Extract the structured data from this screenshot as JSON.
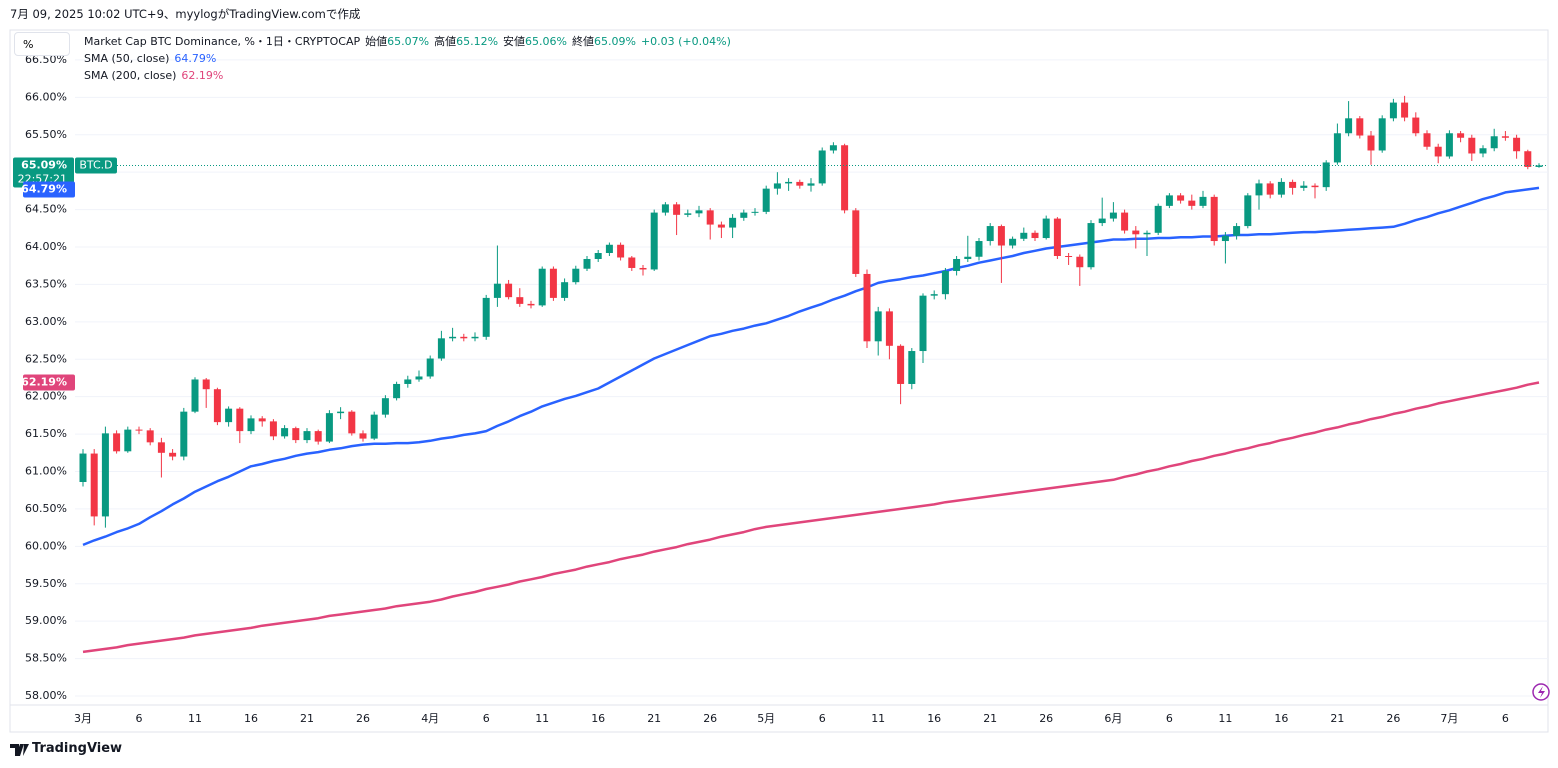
{
  "header": {
    "created": "7月 09, 2025 10:02 UTC+9、myylogがTradingView.comで作成",
    "scale_button": "%",
    "logo": "TradingView"
  },
  "chart_data": {
    "type": "candlestick",
    "title": "Market Cap BTC Dominance, %・1日・CRYPTOCAP",
    "ohlc_legend": [
      {
        "label": "始値",
        "value": "65.07%"
      },
      {
        "label": "高値",
        "value": "65.12%"
      },
      {
        "label": "安値",
        "value": "65.06%"
      },
      {
        "label": "終値",
        "value": "65.09%"
      }
    ],
    "change": "+0.03 (+0.04%)",
    "price_tag": {
      "price": "65.09%",
      "symbol": "BTC.D",
      "countdown": "22:57:21"
    },
    "up_color": "#089981",
    "down_color": "#f23645",
    "grid": true,
    "ylim": [
      57.88,
      66.9
    ],
    "yticks": [
      {
        "value": 58,
        "label": "58.00%"
      },
      {
        "value": 58.5,
        "label": "58.50%"
      },
      {
        "value": 59,
        "label": "59.00%"
      },
      {
        "value": 59.5,
        "label": "59.50%"
      },
      {
        "value": 60,
        "label": "60.00%"
      },
      {
        "value": 60.5,
        "label": "60.50%"
      },
      {
        "value": 61,
        "label": "61.00%"
      },
      {
        "value": 61.5,
        "label": "61.50%"
      },
      {
        "value": 62,
        "label": "62.00%"
      },
      {
        "value": 62.5,
        "label": "62.50%"
      },
      {
        "value": 63,
        "label": "63.00%"
      },
      {
        "value": 63.5,
        "label": "63.50%"
      },
      {
        "value": 64,
        "label": "64.00%"
      },
      {
        "value": 64.5,
        "label": "64.50%"
      },
      {
        "value": 65,
        "label": "65.00%"
      },
      {
        "value": 65.5,
        "label": "65.50%"
      },
      {
        "value": 66,
        "label": "66.00%"
      },
      {
        "value": 66.5,
        "label": "66.50%"
      }
    ],
    "categories": [
      "3月",
      null,
      null,
      null,
      null,
      "6",
      null,
      null,
      null,
      null,
      "11",
      null,
      null,
      null,
      null,
      "16",
      null,
      null,
      null,
      null,
      "21",
      null,
      null,
      null,
      null,
      "26",
      null,
      null,
      null,
      null,
      null,
      "4月",
      null,
      null,
      null,
      null,
      "6",
      null,
      null,
      null,
      null,
      "11",
      null,
      null,
      null,
      null,
      "16",
      null,
      null,
      null,
      null,
      "21",
      null,
      null,
      null,
      null,
      "26",
      null,
      null,
      null,
      null,
      "5月",
      null,
      null,
      null,
      null,
      "6",
      null,
      null,
      null,
      null,
      "11",
      null,
      null,
      null,
      null,
      "16",
      null,
      null,
      null,
      null,
      "21",
      null,
      null,
      null,
      null,
      "26",
      null,
      null,
      null,
      null,
      null,
      "6月",
      null,
      null,
      null,
      null,
      "6",
      null,
      null,
      null,
      null,
      "11",
      null,
      null,
      null,
      null,
      "16",
      null,
      null,
      null,
      null,
      "21",
      null,
      null,
      null,
      null,
      "26",
      null,
      null,
      null,
      null,
      "7月",
      null,
      null,
      null,
      null,
      "6",
      null,
      null,
      null
    ],
    "ohlc": [
      [
        60.86,
        61.3,
        60.8,
        61.24
      ],
      [
        61.24,
        61.3,
        60.28,
        60.4
      ],
      [
        60.4,
        61.6,
        60.25,
        61.51
      ],
      [
        61.51,
        61.55,
        61.24,
        61.27
      ],
      [
        61.27,
        61.6,
        61.25,
        61.56
      ],
      [
        61.56,
        61.6,
        61.5,
        61.55
      ],
      [
        61.55,
        61.58,
        61.35,
        61.39
      ],
      [
        61.39,
        61.45,
        60.92,
        61.25
      ],
      [
        61.25,
        61.3,
        61.15,
        61.2
      ],
      [
        61.2,
        61.85,
        61.15,
        61.8
      ],
      [
        61.8,
        62.26,
        61.78,
        62.23
      ],
      [
        62.23,
        62.25,
        61.85,
        62.1
      ],
      [
        62.1,
        62.12,
        61.62,
        61.66
      ],
      [
        61.66,
        61.87,
        61.6,
        61.84
      ],
      [
        61.84,
        61.86,
        61.38,
        61.54
      ],
      [
        61.54,
        61.75,
        61.5,
        61.71
      ],
      [
        61.71,
        61.74,
        61.6,
        61.67
      ],
      [
        61.67,
        61.7,
        61.42,
        61.47
      ],
      [
        61.47,
        61.62,
        61.44,
        61.58
      ],
      [
        61.58,
        61.6,
        61.38,
        61.42
      ],
      [
        61.42,
        61.58,
        61.38,
        61.54
      ],
      [
        61.54,
        61.56,
        61.36,
        61.4
      ],
      [
        61.4,
        61.82,
        61.38,
        61.78
      ],
      [
        61.78,
        61.86,
        61.7,
        61.8
      ],
      [
        61.8,
        61.82,
        61.48,
        61.51
      ],
      [
        61.51,
        61.55,
        61.4,
        61.44
      ],
      [
        61.44,
        61.8,
        61.42,
        61.76
      ],
      [
        61.76,
        62.02,
        61.72,
        61.98
      ],
      [
        61.98,
        62.2,
        61.95,
        62.17
      ],
      [
        62.17,
        62.28,
        62.12,
        62.23
      ],
      [
        62.23,
        62.35,
        62.2,
        62.27
      ],
      [
        62.27,
        62.55,
        62.24,
        62.51
      ],
      [
        62.51,
        62.88,
        62.48,
        62.78
      ],
      [
        62.78,
        62.92,
        62.74,
        62.8
      ],
      [
        62.8,
        62.84,
        62.74,
        62.78
      ],
      [
        62.78,
        62.86,
        62.74,
        62.8
      ],
      [
        62.8,
        63.36,
        62.76,
        63.32
      ],
      [
        63.32,
        64.02,
        63.2,
        63.51
      ],
      [
        63.51,
        63.56,
        63.3,
        63.33
      ],
      [
        63.33,
        63.45,
        63.2,
        63.24
      ],
      [
        63.24,
        63.28,
        63.18,
        63.22
      ],
      [
        63.22,
        63.74,
        63.2,
        63.71
      ],
      [
        63.71,
        63.74,
        63.28,
        63.32
      ],
      [
        63.32,
        63.58,
        63.28,
        63.53
      ],
      [
        63.53,
        63.75,
        63.5,
        63.71
      ],
      [
        63.71,
        63.88,
        63.68,
        63.84
      ],
      [
        63.84,
        63.96,
        63.8,
        63.92
      ],
      [
        63.92,
        64.06,
        63.88,
        64.03
      ],
      [
        64.03,
        64.06,
        63.82,
        63.86
      ],
      [
        63.86,
        63.88,
        63.68,
        63.72
      ],
      [
        63.72,
        63.76,
        63.62,
        63.7
      ],
      [
        63.7,
        64.5,
        63.68,
        64.46
      ],
      [
        64.46,
        64.6,
        64.42,
        64.57
      ],
      [
        64.57,
        64.6,
        64.16,
        64.43
      ],
      [
        64.43,
        64.5,
        64.4,
        64.45
      ],
      [
        64.45,
        64.55,
        64.4,
        64.49
      ],
      [
        64.49,
        64.52,
        64.1,
        64.3
      ],
      [
        64.3,
        64.34,
        64.12,
        64.26
      ],
      [
        64.26,
        64.44,
        64.12,
        64.39
      ],
      [
        64.39,
        64.5,
        64.35,
        64.46
      ],
      [
        64.46,
        64.52,
        64.42,
        64.47
      ],
      [
        64.47,
        64.82,
        64.44,
        64.78
      ],
      [
        64.78,
        65.0,
        64.7,
        64.85
      ],
      [
        64.85,
        64.92,
        64.75,
        64.87
      ],
      [
        64.87,
        64.9,
        64.78,
        64.82
      ],
      [
        64.82,
        64.92,
        64.74,
        64.85
      ],
      [
        64.85,
        65.33,
        64.82,
        65.29
      ],
      [
        65.29,
        65.4,
        65.25,
        65.36
      ],
      [
        65.36,
        65.38,
        64.45,
        64.49
      ],
      [
        64.49,
        64.52,
        63.6,
        63.64
      ],
      [
        63.64,
        63.7,
        62.65,
        62.74
      ],
      [
        62.74,
        63.2,
        62.55,
        63.14
      ],
      [
        63.14,
        63.18,
        62.5,
        62.68
      ],
      [
        62.68,
        62.7,
        61.9,
        62.17
      ],
      [
        62.17,
        62.65,
        62.1,
        62.61
      ],
      [
        62.61,
        63.38,
        62.45,
        63.35
      ],
      [
        63.35,
        63.42,
        63.3,
        63.37
      ],
      [
        63.37,
        63.72,
        63.3,
        63.68
      ],
      [
        63.68,
        63.88,
        63.62,
        63.84
      ],
      [
        63.84,
        64.15,
        63.8,
        63.87
      ],
      [
        63.87,
        64.12,
        63.82,
        64.08
      ],
      [
        64.08,
        64.32,
        64.02,
        64.28
      ],
      [
        64.28,
        64.3,
        63.52,
        64.02
      ],
      [
        64.02,
        64.14,
        63.98,
        64.11
      ],
      [
        64.11,
        64.26,
        64.08,
        64.19
      ],
      [
        64.19,
        64.22,
        64.08,
        64.12
      ],
      [
        64.12,
        64.42,
        64.1,
        64.38
      ],
      [
        64.38,
        64.4,
        63.84,
        63.88
      ],
      [
        63.88,
        63.92,
        63.76,
        63.87
      ],
      [
        63.87,
        63.9,
        63.48,
        63.73
      ],
      [
        63.73,
        64.36,
        63.7,
        64.32
      ],
      [
        64.32,
        64.66,
        64.28,
        64.38
      ],
      [
        64.38,
        64.6,
        64.34,
        64.46
      ],
      [
        64.46,
        64.5,
        64.18,
        64.22
      ],
      [
        64.22,
        64.28,
        63.98,
        64.17
      ],
      [
        64.17,
        64.22,
        63.88,
        64.19
      ],
      [
        64.19,
        64.58,
        64.16,
        64.55
      ],
      [
        64.55,
        64.72,
        64.52,
        64.69
      ],
      [
        64.69,
        64.72,
        64.58,
        64.62
      ],
      [
        64.62,
        64.7,
        64.5,
        64.55
      ],
      [
        64.55,
        64.75,
        64.52,
        64.67
      ],
      [
        64.67,
        64.7,
        64.02,
        64.08
      ],
      [
        64.08,
        64.2,
        63.78,
        64.15
      ],
      [
        64.15,
        64.32,
        64.1,
        64.28
      ],
      [
        64.28,
        64.72,
        64.25,
        64.69
      ],
      [
        64.69,
        64.9,
        64.5,
        64.85
      ],
      [
        64.85,
        64.88,
        64.65,
        64.7
      ],
      [
        64.7,
        64.92,
        64.66,
        64.87
      ],
      [
        64.87,
        64.9,
        64.7,
        64.79
      ],
      [
        64.79,
        64.88,
        64.75,
        64.82
      ],
      [
        64.82,
        64.85,
        64.65,
        64.8
      ],
      [
        64.8,
        65.16,
        64.75,
        65.13
      ],
      [
        65.13,
        65.65,
        65.1,
        65.52
      ],
      [
        65.52,
        65.95,
        65.48,
        65.72
      ],
      [
        65.72,
        65.75,
        65.45,
        65.49
      ],
      [
        65.49,
        65.55,
        65.1,
        65.29
      ],
      [
        65.29,
        65.76,
        65.26,
        65.72
      ],
      [
        65.72,
        65.98,
        65.68,
        65.93
      ],
      [
        65.93,
        66.02,
        65.68,
        65.73
      ],
      [
        65.73,
        65.8,
        65.48,
        65.52
      ],
      [
        65.52,
        65.56,
        65.3,
        65.34
      ],
      [
        65.34,
        65.38,
        65.12,
        65.21
      ],
      [
        65.21,
        65.56,
        65.18,
        65.52
      ],
      [
        65.52,
        65.55,
        65.4,
        65.46
      ],
      [
        65.46,
        65.5,
        65.15,
        65.25
      ],
      [
        65.25,
        65.36,
        65.2,
        65.32
      ],
      [
        65.32,
        65.58,
        65.28,
        65.48
      ],
      [
        65.48,
        65.55,
        65.42,
        65.46
      ],
      [
        65.46,
        65.5,
        65.18,
        65.28
      ],
      [
        65.28,
        65.3,
        65.04,
        65.07
      ],
      [
        65.07,
        65.12,
        65.06,
        65.09
      ]
    ],
    "series": [
      {
        "name": "SMA (50, close)",
        "color": "#2962ff",
        "legend_value": "64.79%",
        "tag": "64.79%",
        "values": [
          60.02,
          60.08,
          60.13,
          60.19,
          60.24,
          60.3,
          60.39,
          60.47,
          60.56,
          60.64,
          60.73,
          60.8,
          60.87,
          60.93,
          61.0,
          61.07,
          61.1,
          61.14,
          61.17,
          61.21,
          61.24,
          61.26,
          61.29,
          61.31,
          61.34,
          61.36,
          61.37,
          61.37,
          61.38,
          61.38,
          61.39,
          61.41,
          61.44,
          61.46,
          61.49,
          61.51,
          61.54,
          61.61,
          61.67,
          61.74,
          61.8,
          61.87,
          61.92,
          61.97,
          62.01,
          62.06,
          62.11,
          62.19,
          62.27,
          62.35,
          62.43,
          62.51,
          62.57,
          62.63,
          62.69,
          62.75,
          62.81,
          62.84,
          62.88,
          62.91,
          62.95,
          62.98,
          63.03,
          63.08,
          63.14,
          63.19,
          63.24,
          63.3,
          63.35,
          63.41,
          63.46,
          63.52,
          63.55,
          63.57,
          63.6,
          63.62,
          63.65,
          63.68,
          63.72,
          63.75,
          63.79,
          63.82,
          63.85,
          63.88,
          63.92,
          63.95,
          63.98,
          64.0,
          64.02,
          64.04,
          64.06,
          64.08,
          64.1,
          64.1,
          64.11,
          64.11,
          64.12,
          64.12,
          64.13,
          64.13,
          64.14,
          64.14,
          64.15,
          64.16,
          64.16,
          64.17,
          64.17,
          64.18,
          64.19,
          64.2,
          64.2,
          64.21,
          64.22,
          64.23,
          64.24,
          64.25,
          64.26,
          64.27,
          64.31,
          64.36,
          64.4,
          64.45,
          64.49,
          64.54,
          64.59,
          64.64,
          64.68,
          64.73,
          64.75,
          64.77,
          64.79
        ]
      },
      {
        "name": "SMA (200, close)",
        "color": "#e0457b",
        "legend_value": "62.19%",
        "tag": "62.19%",
        "values": [
          58.59,
          58.61,
          58.63,
          58.65,
          58.68,
          58.7,
          58.72,
          58.74,
          58.76,
          58.78,
          58.81,
          58.83,
          58.85,
          58.87,
          58.89,
          58.91,
          58.94,
          58.96,
          58.98,
          59.0,
          59.02,
          59.04,
          59.07,
          59.09,
          59.11,
          59.13,
          59.15,
          59.17,
          59.2,
          59.22,
          59.24,
          59.26,
          59.29,
          59.33,
          59.36,
          59.39,
          59.43,
          59.46,
          59.49,
          59.53,
          59.56,
          59.59,
          59.63,
          59.66,
          59.69,
          59.73,
          59.76,
          59.79,
          59.83,
          59.86,
          59.89,
          59.93,
          59.96,
          59.99,
          60.03,
          60.06,
          60.09,
          60.13,
          60.16,
          60.19,
          60.23,
          60.26,
          60.28,
          60.3,
          60.32,
          60.34,
          60.36,
          60.38,
          60.4,
          60.42,
          60.44,
          60.46,
          60.48,
          60.5,
          60.52,
          60.54,
          60.56,
          60.59,
          60.61,
          60.63,
          60.65,
          60.67,
          60.69,
          60.71,
          60.73,
          60.75,
          60.77,
          60.79,
          60.81,
          60.83,
          60.85,
          60.87,
          60.89,
          60.93,
          60.96,
          61.0,
          61.03,
          61.07,
          61.1,
          61.14,
          61.17,
          61.21,
          61.24,
          61.28,
          61.31,
          61.35,
          61.38,
          61.42,
          61.45,
          61.49,
          61.52,
          61.56,
          61.59,
          61.63,
          61.66,
          61.7,
          61.73,
          61.77,
          61.8,
          61.84,
          61.87,
          61.91,
          61.94,
          61.97,
          62.0,
          62.03,
          62.06,
          62.09,
          62.12,
          62.16,
          62.19
        ]
      }
    ]
  }
}
